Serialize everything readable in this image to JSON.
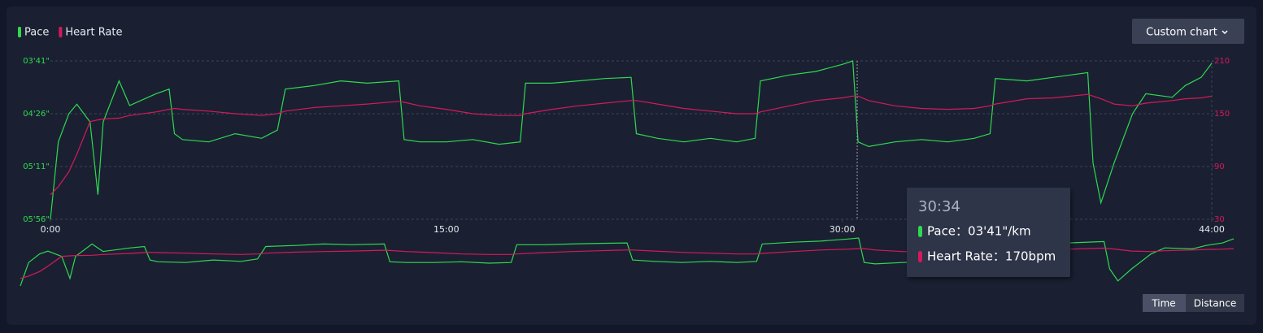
{
  "chart_data": {
    "type": "line",
    "x": [
      0,
      0.3,
      0.7,
      1,
      1.5,
      1.8,
      2,
      2.6,
      3,
      4,
      4.5,
      4.7,
      5,
      6,
      7,
      8,
      8.6,
      8.9,
      10,
      11,
      12,
      13.2,
      13.4,
      14,
      15,
      16,
      17,
      17.8,
      18,
      19,
      20,
      21,
      22,
      22.2,
      23,
      24,
      25,
      26,
      26.7,
      26.9,
      28,
      29,
      30,
      30.4,
      30.6,
      31,
      32,
      33,
      34,
      35,
      35.6,
      35.8,
      37,
      38,
      39.3,
      39.5,
      39.8,
      40.3,
      41,
      41.5,
      42.5,
      43,
      43.6,
      44
    ],
    "xlim": [
      0,
      44
    ],
    "xticks": [
      {
        "value": 0,
        "label": "0:00"
      },
      {
        "value": 15,
        "label": "15:00"
      },
      {
        "value": 30,
        "label": "30:00"
      },
      {
        "value": 44,
        "label": "44:00"
      }
    ],
    "ylim": [
      356,
      221
    ],
    "yticks": [
      {
        "value": 221,
        "label": "03'41\""
      },
      {
        "value": 266,
        "label": "04'26\""
      },
      {
        "value": 311,
        "label": "05'11\""
      },
      {
        "value": 356,
        "label": "05'56\""
      }
    ],
    "y2lim": [
      30,
      210
    ],
    "y2ticks": [
      30,
      90,
      150,
      210
    ],
    "grid": true,
    "series": [
      {
        "name": "Pace",
        "color": "#2fd94f",
        "values": [
          356,
          290,
          266,
          258,
          273,
          335,
          273,
          238,
          259,
          249,
          245,
          283,
          288,
          290,
          283,
          287,
          280,
          245,
          242,
          238,
          240,
          238,
          288,
          290,
          290,
          288,
          292,
          290,
          240,
          240,
          238,
          236,
          235,
          283,
          287,
          290,
          287,
          290,
          287,
          238,
          233,
          230,
          224,
          221,
          290,
          294,
          290,
          288,
          290,
          287,
          283,
          236,
          238,
          235,
          231,
          308,
          342,
          308,
          266,
          249,
          252,
          242,
          235,
          223
        ]
      },
      {
        "name": "Heart Rate",
        "color": "#d6195a",
        "axis": "y2",
        "values": [
          58,
          67,
          84,
          104,
          141,
          143,
          144,
          145,
          148,
          152,
          155,
          156,
          155,
          153,
          150,
          148,
          150,
          153,
          157,
          159,
          161,
          164,
          163,
          159,
          155,
          150,
          148,
          148,
          150,
          155,
          159,
          162,
          165,
          165,
          161,
          156,
          153,
          150,
          150,
          152,
          159,
          165,
          168,
          170,
          170,
          165,
          159,
          156,
          155,
          156,
          159,
          161,
          167,
          168,
          172,
          170,
          167,
          161,
          159,
          162,
          165,
          167,
          168,
          170
        ]
      }
    ],
    "tooltip": {
      "time": {
        "value": 30.5667,
        "label": "30:34"
      },
      "items": [
        "Pace：03'41\"/km",
        "Heart Rate：170bpm"
      ]
    }
  },
  "controls": {
    "custom_chart": "Custom chart",
    "modes": [
      "Time",
      "Distance"
    ]
  }
}
